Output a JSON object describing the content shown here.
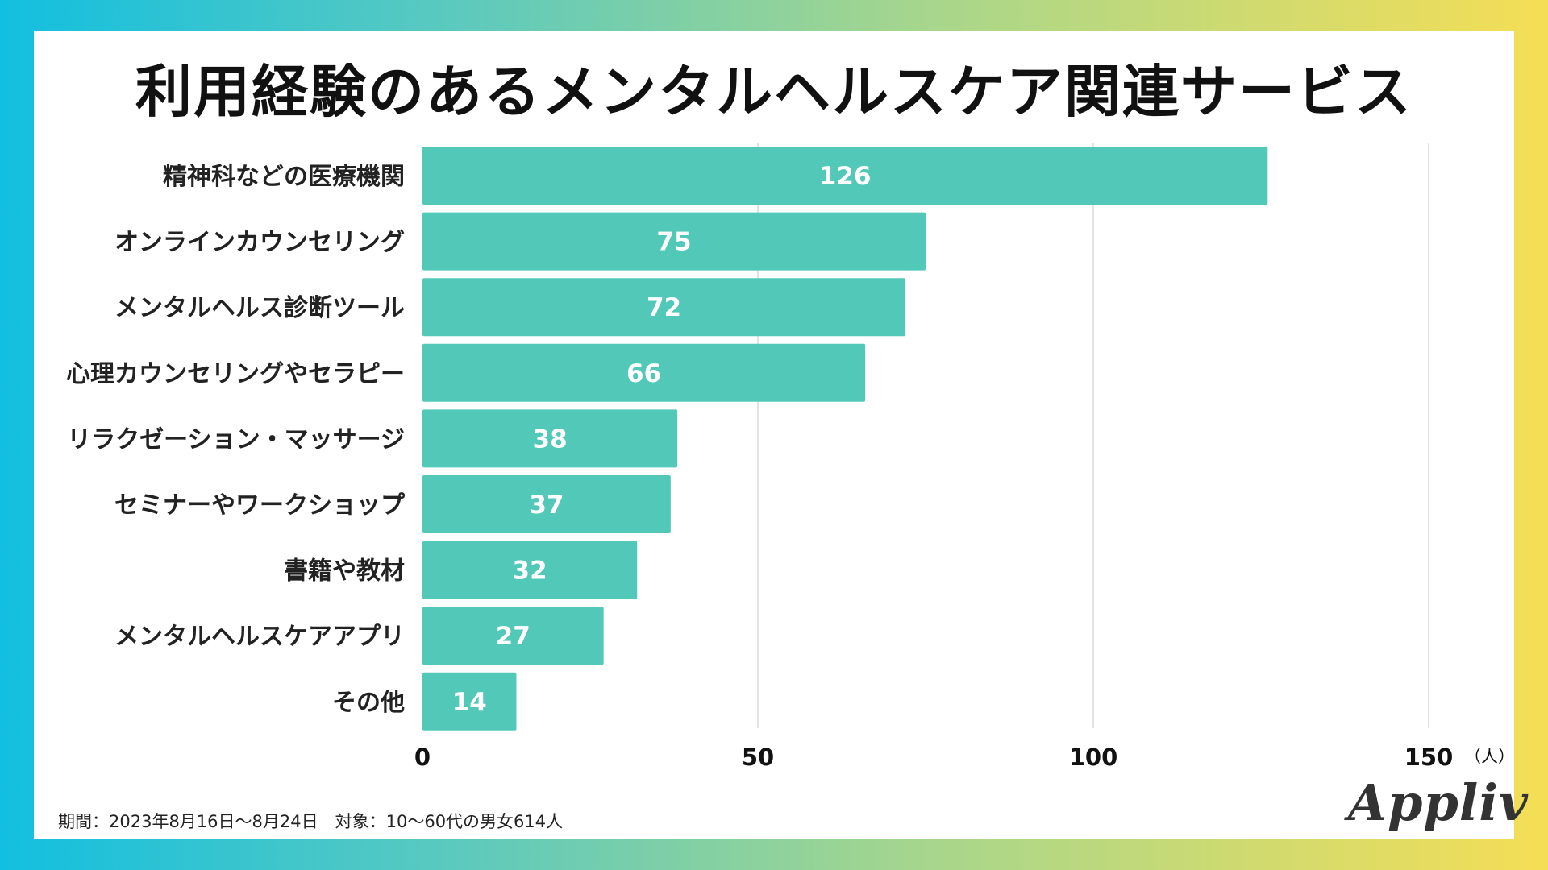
{
  "title": "利用経験のあるメンタルヘルスケア関連サービス",
  "chart_data": {
    "type": "bar",
    "orientation": "horizontal",
    "title": "利用経験のあるメンタルヘルスケア関連サービス",
    "categories": [
      "精神科などの医療機関",
      "オンラインカウンセリング",
      "メンタルヘルス診断ツール",
      "心理カウンセリングやセラピー",
      "リラクゼーション・マッサージ",
      "セミナーやワークショップ",
      "書籍や教材",
      "メンタルヘルスケアアプリ",
      "その他"
    ],
    "values": [
      126,
      75,
      72,
      66,
      38,
      37,
      32,
      27,
      14
    ],
    "xlim": [
      0,
      150
    ],
    "xticks": [
      0,
      50,
      100,
      150
    ],
    "xunit": "（人）",
    "grid": true,
    "bar_color": "#52c8b8",
    "grid_color": "#d9d9d9"
  },
  "footnote": "期間：2023年8月16日〜8月24日　対象：10〜60代の男女614人",
  "logo": "Appliv"
}
